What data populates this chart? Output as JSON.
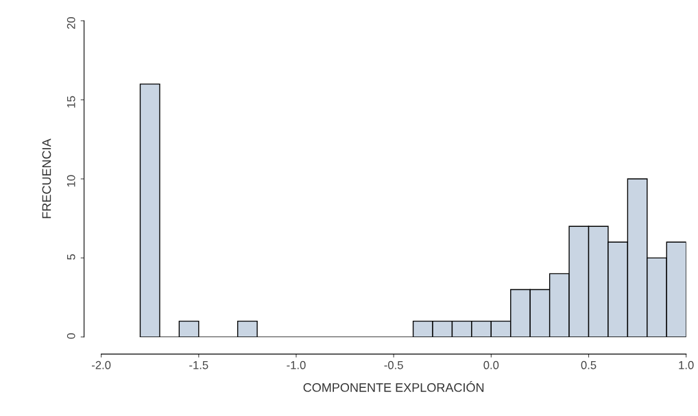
{
  "chart_data": {
    "type": "histogram",
    "xlabel": "COMPONENTE EXPLORACIÓN",
    "ylabel": "FRECUENCIA",
    "bins": [
      -1.8,
      -1.7,
      -1.6,
      -1.5,
      -1.4,
      -1.3,
      -1.2,
      -1.1,
      -1.0,
      -0.9,
      -0.8,
      -0.7,
      -0.6,
      -0.5,
      -0.4,
      -0.3,
      -0.2,
      -0.1,
      0.0,
      0.1,
      0.2,
      0.3,
      0.4,
      0.5,
      0.6,
      0.7,
      0.8,
      0.9,
      1.0
    ],
    "values": [
      16,
      0,
      1,
      0,
      0,
      1,
      0,
      0,
      0,
      0,
      0,
      0,
      0,
      0,
      1,
      1,
      1,
      1,
      1,
      3,
      3,
      4,
      7,
      7,
      6,
      10,
      5,
      6
    ],
    "color": "#c9d5e3",
    "xlim": [
      -2.0,
      1.0
    ],
    "xticks": [
      {
        "value": -2.0,
        "label": "-2.0"
      },
      {
        "value": -1.5,
        "label": "-1.5"
      },
      {
        "value": -1.0,
        "label": "-1.0"
      },
      {
        "value": -0.5,
        "label": "-0.5"
      },
      {
        "value": 0.0,
        "label": "0.0"
      },
      {
        "value": 0.5,
        "label": "0.5"
      },
      {
        "value": 1.0,
        "label": "1.0"
      }
    ],
    "ylim": [
      0,
      20
    ],
    "yticks": [
      0,
      5,
      10,
      15,
      20
    ],
    "grid": false
  }
}
